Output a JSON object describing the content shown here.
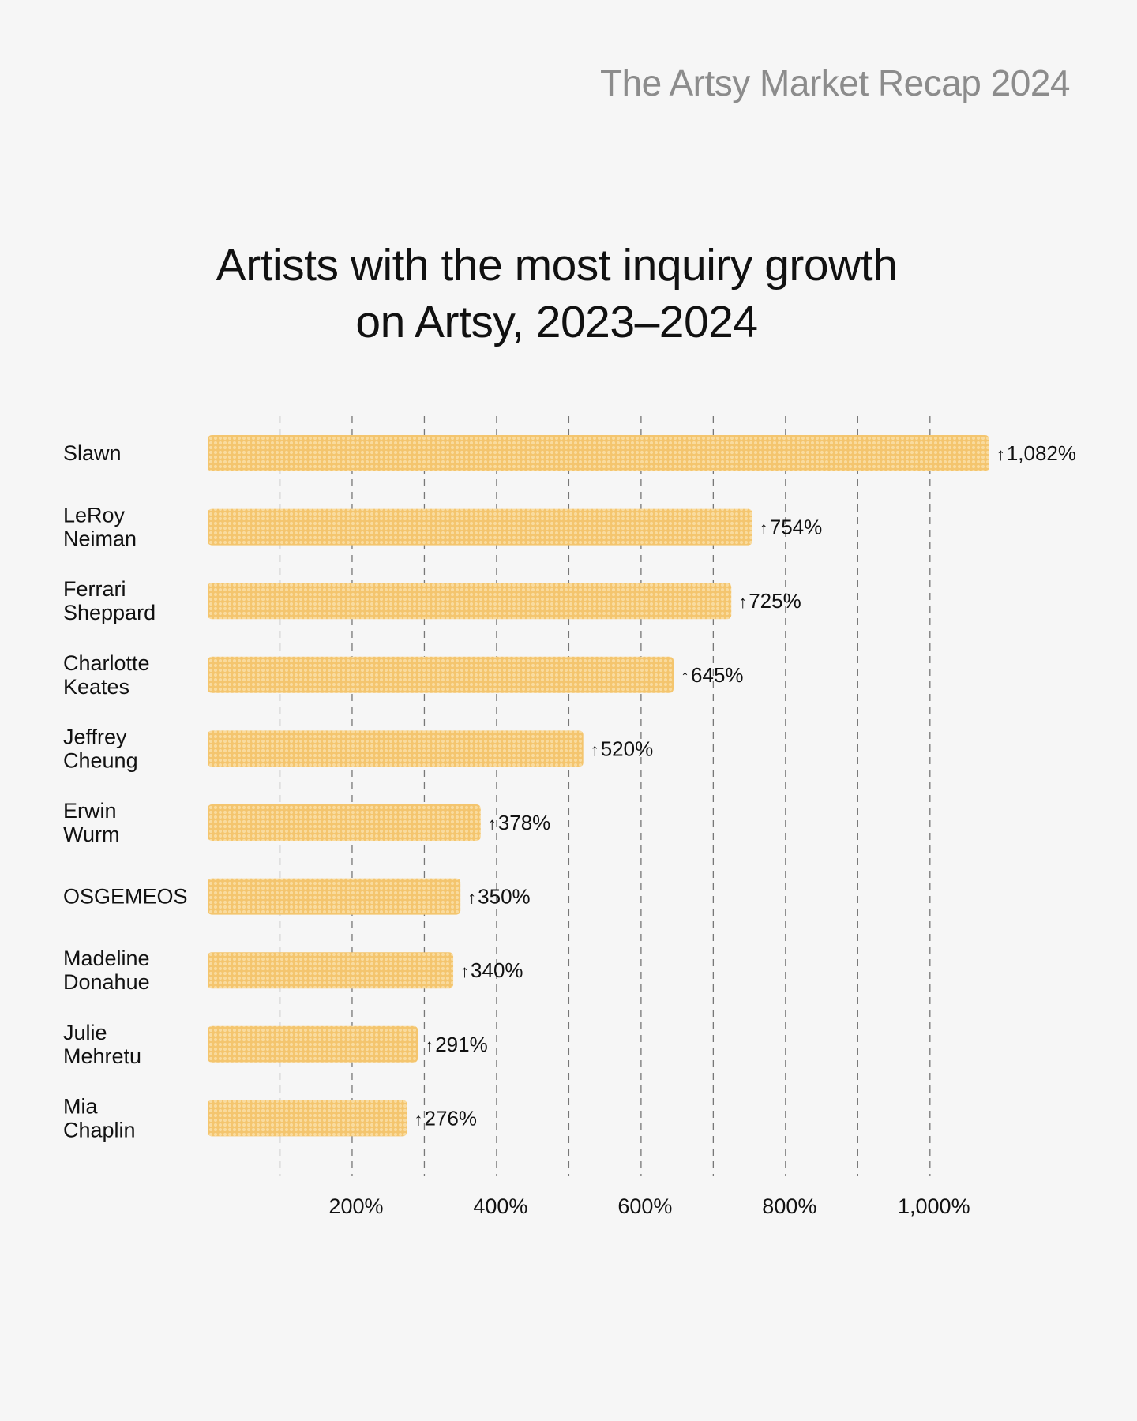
{
  "header": {
    "brand": "The Artsy Market Recap 2024"
  },
  "colors": {
    "bar": "#f4c56e",
    "dot": "#f9db9e",
    "grid": "#777777",
    "text": "#111111",
    "brand": "#8c8c8c",
    "background": "#f6f6f6"
  },
  "chart_data": {
    "type": "bar",
    "orientation": "horizontal",
    "title_lines": [
      "Artists with the most inquiry growth",
      "on Artsy, 2023–2024"
    ],
    "xlabel": "",
    "ylabel": "",
    "xlim": [
      0,
      1100
    ],
    "grid": true,
    "value_prefix": "↑",
    "ticks": [
      {
        "value": 200,
        "label": "200%"
      },
      {
        "value": 400,
        "label": "400%"
      },
      {
        "value": 600,
        "label": "600%"
      },
      {
        "value": 800,
        "label": "800%"
      },
      {
        "value": 1000,
        "label": "1,000%"
      }
    ],
    "gridlines": [
      100,
      200,
      300,
      400,
      500,
      600,
      700,
      800,
      900,
      1000
    ],
    "categories": [
      [
        "Slawn"
      ],
      [
        "LeRoy",
        "Neiman"
      ],
      [
        "Ferrari",
        "Sheppard"
      ],
      [
        "Charlotte",
        "Keates"
      ],
      [
        "Jeffrey",
        "Cheung"
      ],
      [
        "Erwin",
        "Wurm"
      ],
      [
        "OSGEMEOS"
      ],
      [
        "Madeline",
        "Donahue"
      ],
      [
        "Julie",
        "Mehretu"
      ],
      [
        "Mia",
        "Chaplin"
      ]
    ],
    "values": [
      1082,
      754,
      725,
      645,
      520,
      378,
      350,
      340,
      291,
      276
    ],
    "value_labels": [
      "1,082%",
      "754%",
      "725%",
      "645%",
      "520%",
      "378%",
      "350%",
      "340%",
      "291%",
      "276%"
    ]
  }
}
